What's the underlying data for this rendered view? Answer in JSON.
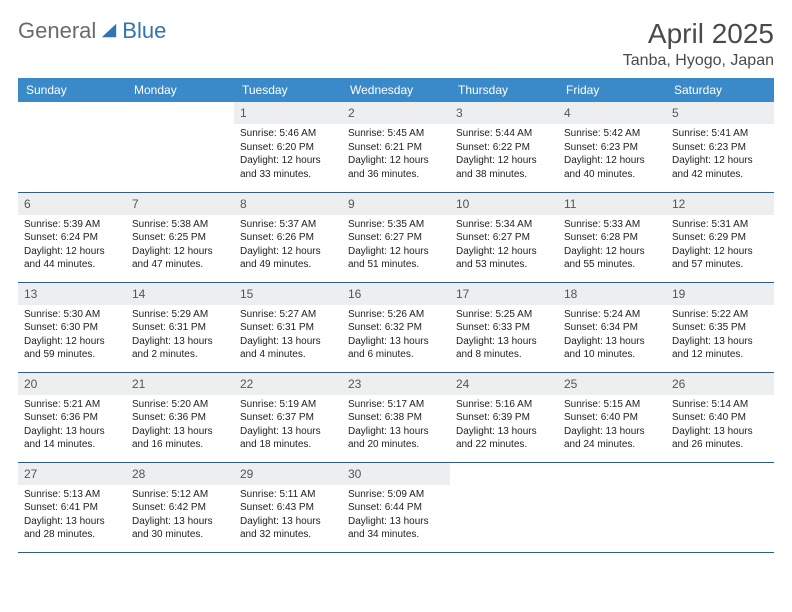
{
  "logo": {
    "part1": "General",
    "part2": "Blue"
  },
  "title": "April 2025",
  "location": "Tanba, Hyogo, Japan",
  "weekdays": [
    "Sunday",
    "Monday",
    "Tuesday",
    "Wednesday",
    "Thursday",
    "Friday",
    "Saturday"
  ],
  "colors": {
    "header_bg": "#3a8ac9",
    "header_text": "#ffffff",
    "daynum_bg": "#eceef0",
    "row_border": "#2f5d8a",
    "logo_gray": "#6a6a6a",
    "logo_blue": "#2f75b5"
  },
  "grid": [
    [
      null,
      null,
      {
        "n": "1",
        "sunrise": "Sunrise: 5:46 AM",
        "sunset": "Sunset: 6:20 PM",
        "day1": "Daylight: 12 hours",
        "day2": "and 33 minutes."
      },
      {
        "n": "2",
        "sunrise": "Sunrise: 5:45 AM",
        "sunset": "Sunset: 6:21 PM",
        "day1": "Daylight: 12 hours",
        "day2": "and 36 minutes."
      },
      {
        "n": "3",
        "sunrise": "Sunrise: 5:44 AM",
        "sunset": "Sunset: 6:22 PM",
        "day1": "Daylight: 12 hours",
        "day2": "and 38 minutes."
      },
      {
        "n": "4",
        "sunrise": "Sunrise: 5:42 AM",
        "sunset": "Sunset: 6:23 PM",
        "day1": "Daylight: 12 hours",
        "day2": "and 40 minutes."
      },
      {
        "n": "5",
        "sunrise": "Sunrise: 5:41 AM",
        "sunset": "Sunset: 6:23 PM",
        "day1": "Daylight: 12 hours",
        "day2": "and 42 minutes."
      }
    ],
    [
      {
        "n": "6",
        "sunrise": "Sunrise: 5:39 AM",
        "sunset": "Sunset: 6:24 PM",
        "day1": "Daylight: 12 hours",
        "day2": "and 44 minutes."
      },
      {
        "n": "7",
        "sunrise": "Sunrise: 5:38 AM",
        "sunset": "Sunset: 6:25 PM",
        "day1": "Daylight: 12 hours",
        "day2": "and 47 minutes."
      },
      {
        "n": "8",
        "sunrise": "Sunrise: 5:37 AM",
        "sunset": "Sunset: 6:26 PM",
        "day1": "Daylight: 12 hours",
        "day2": "and 49 minutes."
      },
      {
        "n": "9",
        "sunrise": "Sunrise: 5:35 AM",
        "sunset": "Sunset: 6:27 PM",
        "day1": "Daylight: 12 hours",
        "day2": "and 51 minutes."
      },
      {
        "n": "10",
        "sunrise": "Sunrise: 5:34 AM",
        "sunset": "Sunset: 6:27 PM",
        "day1": "Daylight: 12 hours",
        "day2": "and 53 minutes."
      },
      {
        "n": "11",
        "sunrise": "Sunrise: 5:33 AM",
        "sunset": "Sunset: 6:28 PM",
        "day1": "Daylight: 12 hours",
        "day2": "and 55 minutes."
      },
      {
        "n": "12",
        "sunrise": "Sunrise: 5:31 AM",
        "sunset": "Sunset: 6:29 PM",
        "day1": "Daylight: 12 hours",
        "day2": "and 57 minutes."
      }
    ],
    [
      {
        "n": "13",
        "sunrise": "Sunrise: 5:30 AM",
        "sunset": "Sunset: 6:30 PM",
        "day1": "Daylight: 12 hours",
        "day2": "and 59 minutes."
      },
      {
        "n": "14",
        "sunrise": "Sunrise: 5:29 AM",
        "sunset": "Sunset: 6:31 PM",
        "day1": "Daylight: 13 hours",
        "day2": "and 2 minutes."
      },
      {
        "n": "15",
        "sunrise": "Sunrise: 5:27 AM",
        "sunset": "Sunset: 6:31 PM",
        "day1": "Daylight: 13 hours",
        "day2": "and 4 minutes."
      },
      {
        "n": "16",
        "sunrise": "Sunrise: 5:26 AM",
        "sunset": "Sunset: 6:32 PM",
        "day1": "Daylight: 13 hours",
        "day2": "and 6 minutes."
      },
      {
        "n": "17",
        "sunrise": "Sunrise: 5:25 AM",
        "sunset": "Sunset: 6:33 PM",
        "day1": "Daylight: 13 hours",
        "day2": "and 8 minutes."
      },
      {
        "n": "18",
        "sunrise": "Sunrise: 5:24 AM",
        "sunset": "Sunset: 6:34 PM",
        "day1": "Daylight: 13 hours",
        "day2": "and 10 minutes."
      },
      {
        "n": "19",
        "sunrise": "Sunrise: 5:22 AM",
        "sunset": "Sunset: 6:35 PM",
        "day1": "Daylight: 13 hours",
        "day2": "and 12 minutes."
      }
    ],
    [
      {
        "n": "20",
        "sunrise": "Sunrise: 5:21 AM",
        "sunset": "Sunset: 6:36 PM",
        "day1": "Daylight: 13 hours",
        "day2": "and 14 minutes."
      },
      {
        "n": "21",
        "sunrise": "Sunrise: 5:20 AM",
        "sunset": "Sunset: 6:36 PM",
        "day1": "Daylight: 13 hours",
        "day2": "and 16 minutes."
      },
      {
        "n": "22",
        "sunrise": "Sunrise: 5:19 AM",
        "sunset": "Sunset: 6:37 PM",
        "day1": "Daylight: 13 hours",
        "day2": "and 18 minutes."
      },
      {
        "n": "23",
        "sunrise": "Sunrise: 5:17 AM",
        "sunset": "Sunset: 6:38 PM",
        "day1": "Daylight: 13 hours",
        "day2": "and 20 minutes."
      },
      {
        "n": "24",
        "sunrise": "Sunrise: 5:16 AM",
        "sunset": "Sunset: 6:39 PM",
        "day1": "Daylight: 13 hours",
        "day2": "and 22 minutes."
      },
      {
        "n": "25",
        "sunrise": "Sunrise: 5:15 AM",
        "sunset": "Sunset: 6:40 PM",
        "day1": "Daylight: 13 hours",
        "day2": "and 24 minutes."
      },
      {
        "n": "26",
        "sunrise": "Sunrise: 5:14 AM",
        "sunset": "Sunset: 6:40 PM",
        "day1": "Daylight: 13 hours",
        "day2": "and 26 minutes."
      }
    ],
    [
      {
        "n": "27",
        "sunrise": "Sunrise: 5:13 AM",
        "sunset": "Sunset: 6:41 PM",
        "day1": "Daylight: 13 hours",
        "day2": "and 28 minutes."
      },
      {
        "n": "28",
        "sunrise": "Sunrise: 5:12 AM",
        "sunset": "Sunset: 6:42 PM",
        "day1": "Daylight: 13 hours",
        "day2": "and 30 minutes."
      },
      {
        "n": "29",
        "sunrise": "Sunrise: 5:11 AM",
        "sunset": "Sunset: 6:43 PM",
        "day1": "Daylight: 13 hours",
        "day2": "and 32 minutes."
      },
      {
        "n": "30",
        "sunrise": "Sunrise: 5:09 AM",
        "sunset": "Sunset: 6:44 PM",
        "day1": "Daylight: 13 hours",
        "day2": "and 34 minutes."
      },
      null,
      null,
      null
    ]
  ]
}
